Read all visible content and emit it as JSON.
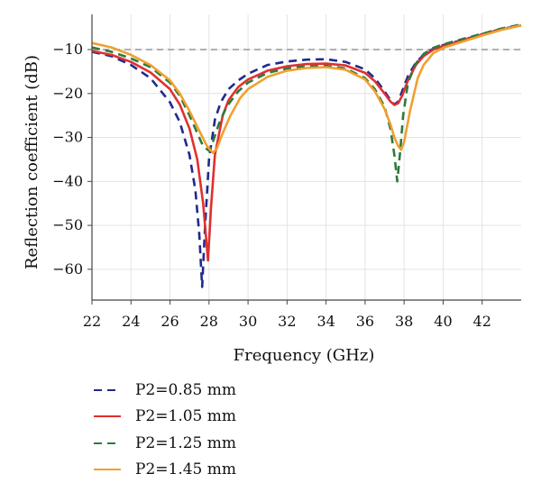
{
  "chart_data": {
    "type": "line",
    "title": "",
    "xlabel": "Frequency (GHz)",
    "ylabel": "Reflection coefficient (dB)",
    "xlim": [
      22,
      44
    ],
    "ylim": [
      -67,
      -2
    ],
    "xticks": [
      22,
      24,
      26,
      28,
      30,
      32,
      34,
      36,
      38,
      40,
      42
    ],
    "yticks": [
      -10,
      -20,
      -30,
      -40,
      -50,
      -60
    ],
    "grid": true,
    "reference_line": {
      "y": -10,
      "style": "dashed",
      "color": "#b0b0b0"
    },
    "legend_position": "below",
    "series": [
      {
        "name": "P2=0.85 mm",
        "color": "#1f2a8c",
        "dash": "dashed",
        "x": [
          22,
          23,
          24,
          25,
          26,
          26.5,
          27,
          27.3,
          27.5,
          27.65,
          27.8,
          28,
          28.3,
          28.6,
          29,
          29.5,
          30,
          31,
          32,
          33,
          34,
          35,
          36,
          36.5,
          37,
          37.3,
          37.5,
          37.7,
          37.9,
          38.2,
          38.6,
          39,
          39.5,
          40,
          41,
          42,
          43,
          44
        ],
        "y": [
          -10.5,
          -11.5,
          -13.5,
          -16.5,
          -22,
          -26.5,
          -34,
          -42,
          -52,
          -64,
          -50,
          -35,
          -26,
          -22,
          -19,
          -17,
          -15.5,
          -13.5,
          -12.7,
          -12.3,
          -12.2,
          -12.8,
          -14.5,
          -16.5,
          -19.5,
          -21.5,
          -22.5,
          -21.8,
          -19.5,
          -16,
          -13,
          -11.2,
          -9.8,
          -9,
          -7.8,
          -6.5,
          -5.3,
          -4.5
        ]
      },
      {
        "name": "P2=1.05 mm",
        "color": "#e03030",
        "dash": "solid",
        "x": [
          22,
          23,
          24,
          25,
          26,
          26.5,
          27,
          27.4,
          27.7,
          27.95,
          28.1,
          28.3,
          28.7,
          29,
          29.5,
          30,
          31,
          32,
          33,
          34,
          35,
          36,
          36.5,
          37,
          37.3,
          37.5,
          37.7,
          37.9,
          38.2,
          38.6,
          39,
          39.5,
          40,
          41,
          42,
          43,
          44
        ],
        "y": [
          -10.3,
          -11.2,
          -12.8,
          -15.2,
          -19,
          -22.5,
          -28,
          -35,
          -45,
          -58,
          -46,
          -34,
          -25,
          -21.5,
          -18.5,
          -16.8,
          -14.8,
          -13.8,
          -13.3,
          -13.2,
          -13.6,
          -15.3,
          -17.2,
          -20,
          -21.8,
          -22.6,
          -22.2,
          -20.5,
          -17,
          -13.5,
          -11.5,
          -10,
          -9.2,
          -7.9,
          -6.6,
          -5.4,
          -4.5
        ]
      },
      {
        "name": "P2=1.25 mm",
        "color": "#2f7a3a",
        "dash": "dashed",
        "x": [
          22,
          23,
          24,
          25,
          26,
          26.5,
          27,
          27.4,
          27.7,
          28,
          28.2,
          28.5,
          28.9,
          29.5,
          30,
          31,
          32,
          33,
          34,
          35,
          36,
          36.5,
          37,
          37.3,
          37.5,
          37.65,
          37.8,
          37.95,
          38.2,
          38.6,
          39,
          39.5,
          40,
          41,
          42,
          43,
          44
        ],
        "y": [
          -9.5,
          -10.5,
          -12,
          -14,
          -17.5,
          -20.5,
          -25,
          -29,
          -32,
          -33,
          -31,
          -27,
          -23,
          -19.5,
          -17.5,
          -15.3,
          -14.3,
          -13.8,
          -13.7,
          -14.3,
          -16.5,
          -19,
          -23,
          -28,
          -34,
          -40,
          -33,
          -25,
          -17.5,
          -13.2,
          -11,
          -9.6,
          -8.8,
          -7.6,
          -6.4,
          -5.2,
          -4.3
        ]
      },
      {
        "name": "P2=1.45 mm",
        "color": "#f0a030",
        "dash": "solid",
        "x": [
          22,
          23,
          24,
          25,
          26,
          26.5,
          27,
          27.5,
          27.9,
          28.2,
          28.4,
          28.7,
          29.1,
          29.6,
          30,
          31,
          32,
          33,
          34,
          35,
          36,
          36.5,
          37,
          37.3,
          37.5,
          37.7,
          37.85,
          38,
          38.3,
          38.7,
          39,
          39.5,
          40,
          41,
          42,
          43,
          44
        ],
        "y": [
          -8.5,
          -9.5,
          -11.2,
          -13.5,
          -17,
          -20,
          -24,
          -28.5,
          -32,
          -33.5,
          -32.5,
          -29,
          -25,
          -21,
          -19,
          -16.2,
          -14.8,
          -14.2,
          -14,
          -14.6,
          -16.8,
          -19.5,
          -23.5,
          -27,
          -30,
          -32,
          -32.8,
          -31,
          -24,
          -16.5,
          -13.5,
          -10.8,
          -9.6,
          -8.2,
          -6.8,
          -5.5,
          -4.5
        ]
      }
    ]
  }
}
